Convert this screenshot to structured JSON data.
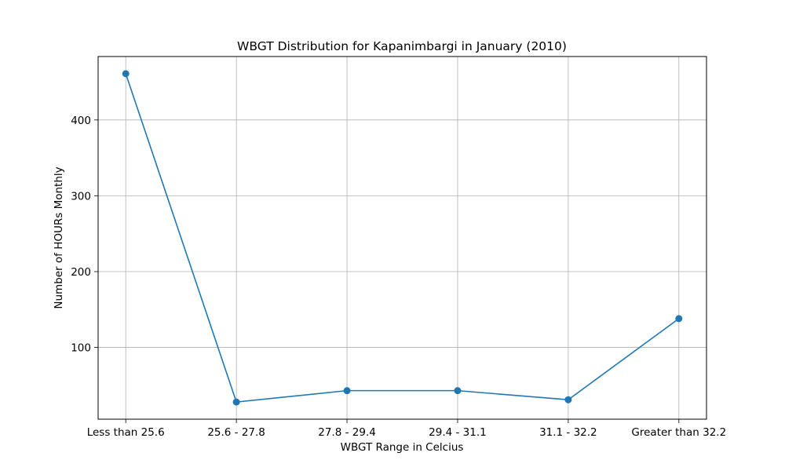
{
  "chart_data": {
    "type": "line",
    "title": "WBGT Distribution for Kapanimbargi in January (2010)",
    "xlabel": "WBGT Range in Celcius",
    "ylabel": "Number of HOURs Monthly",
    "categories": [
      "Less than 25.6",
      "25.6 - 27.8",
      "27.8 - 29.4",
      "29.4 - 31.1",
      "31.1 - 32.2",
      "Greater than 32.2"
    ],
    "series": [
      {
        "values": [
          461,
          28,
          43,
          43,
          31,
          138
        ],
        "color": "#1f77b4",
        "marker": "circle"
      }
    ],
    "ylim": [
      5.35,
      483.65
    ],
    "yticks": [
      100,
      200,
      300,
      400
    ],
    "grid": true,
    "legend": "none"
  }
}
